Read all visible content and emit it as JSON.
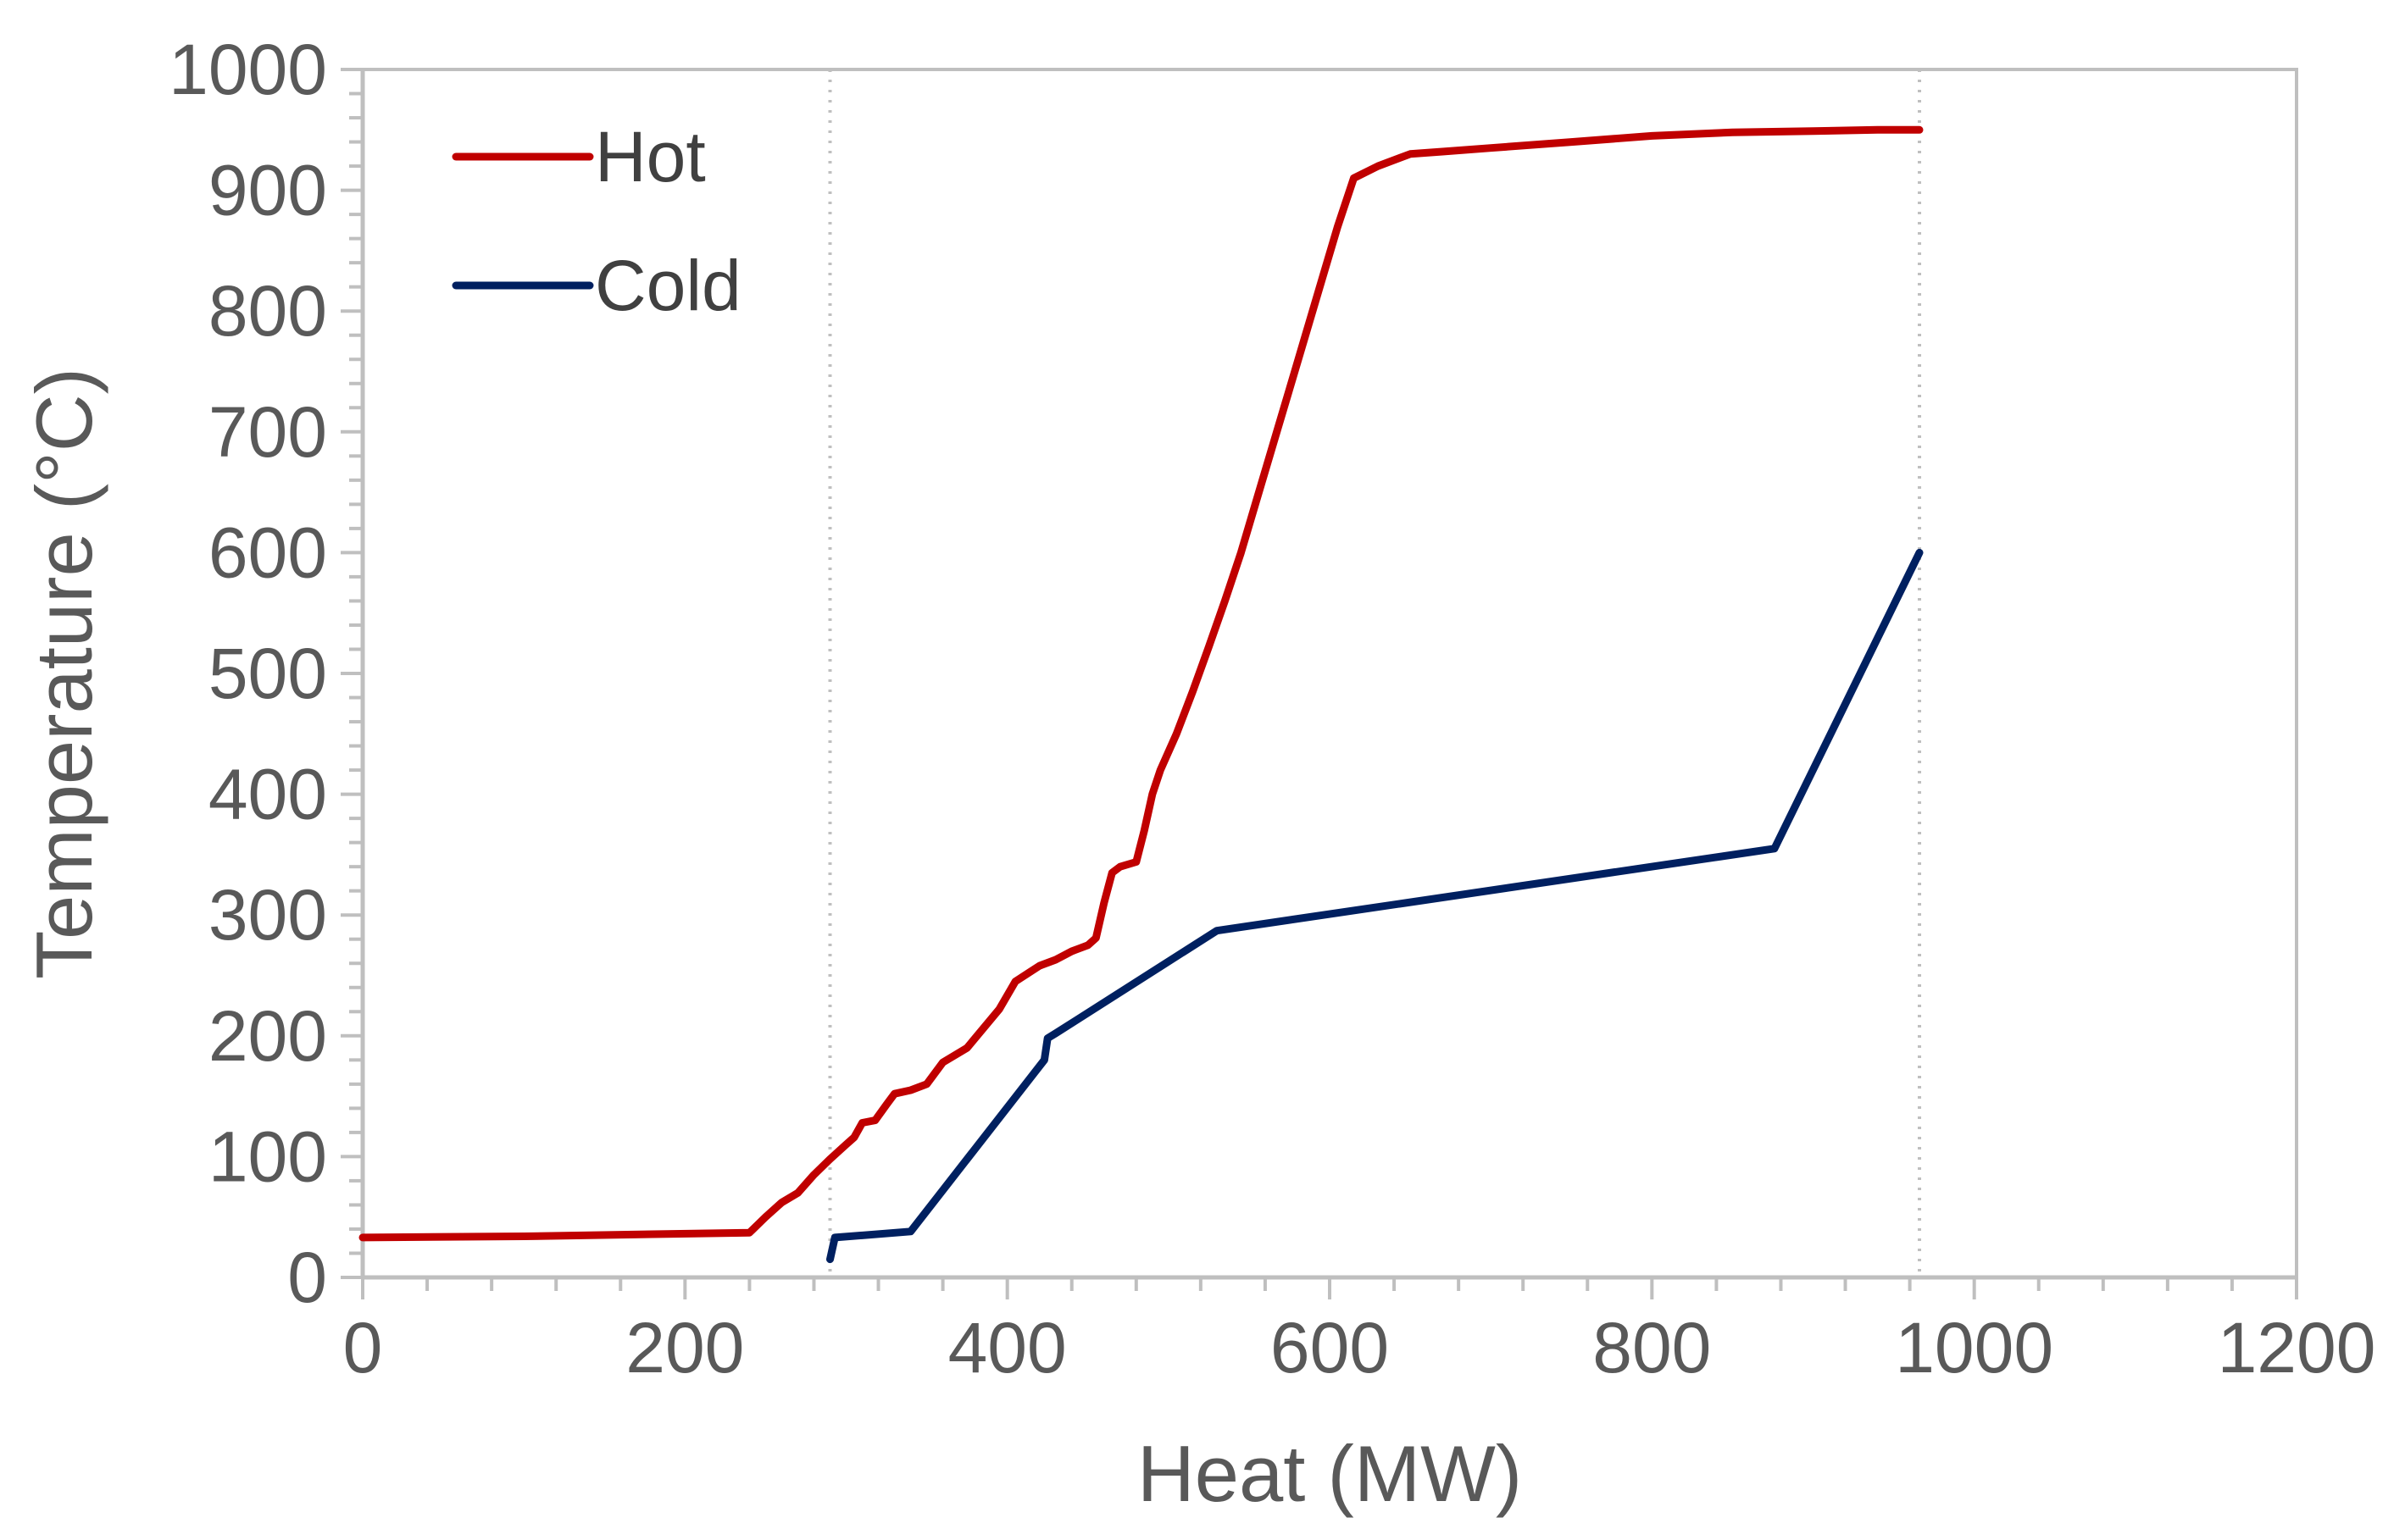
{
  "chart_data": {
    "type": "line",
    "title": "",
    "xlabel": "Heat (MW)",
    "ylabel": "Temperature (°C)",
    "xlim": [
      0,
      1200
    ],
    "ylim": [
      0,
      1000
    ],
    "xticks": [
      0,
      200,
      400,
      600,
      800,
      1000,
      1200
    ],
    "yticks": [
      0,
      100,
      200,
      300,
      400,
      500,
      600,
      700,
      800,
      900,
      1000
    ],
    "xtick_labels": [
      "0",
      "200",
      "400",
      "600",
      "800",
      "1000",
      "1200"
    ],
    "ytick_labels": [
      "0",
      "100",
      "200",
      "300",
      "400",
      "500",
      "600",
      "700",
      "800",
      "900",
      "1000"
    ],
    "grid": false,
    "reference_lines_x": [
      290,
      966
    ],
    "legend": {
      "position": "top-left"
    },
    "series": [
      {
        "name": "Hot",
        "color": "#c00000",
        "x": [
          0,
          100,
          240,
          250,
          260,
          270,
          280,
          290,
          300,
          305,
          310,
          318,
          325,
          330,
          340,
          350,
          360,
          375,
          395,
          405,
          420,
          430,
          440,
          450,
          455,
          460,
          465,
          470,
          480,
          485,
          490,
          495,
          505,
          515,
          525,
          535,
          545,
          555,
          565,
          575,
          585,
          595,
          605,
          615,
          630,
          650,
          670,
          700,
          750,
          800,
          850,
          900,
          940,
          966
        ],
        "y": [
          33,
          34,
          37,
          50,
          62,
          70,
          85,
          98,
          110,
          116,
          128,
          130,
          143,
          152,
          155,
          160,
          178,
          190,
          222,
          245,
          258,
          263,
          270,
          275,
          281,
          310,
          335,
          340,
          344,
          370,
          400,
          420,
          450,
          485,
          522,
          560,
          600,
          645,
          690,
          735,
          780,
          825,
          870,
          910,
          920,
          930,
          932,
          935,
          940,
          945,
          948,
          949,
          950,
          950
        ]
      },
      {
        "name": "Cold",
        "color": "#002060",
        "x": [
          290,
          293,
          340,
          423,
          425,
          430,
          530,
          876,
          966
        ],
        "y": [
          15,
          33,
          38,
          180,
          198,
          202,
          287,
          355,
          600
        ]
      }
    ]
  }
}
